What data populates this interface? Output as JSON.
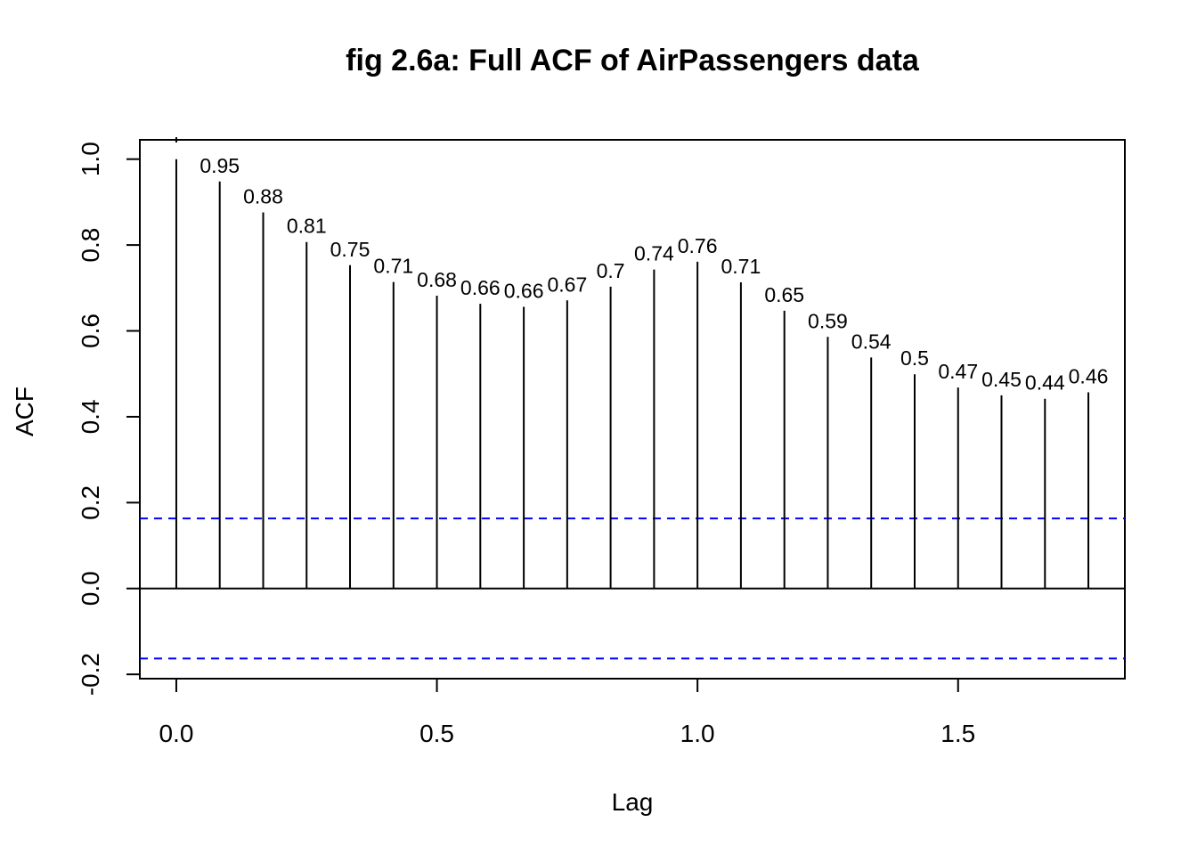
{
  "chart_data": {
    "type": "bar",
    "title": "fig 2.6a: Full ACF of AirPassengers data",
    "xlabel": "Lag",
    "ylabel": "ACF",
    "xlim": [
      -0.07,
      1.82
    ],
    "ylim": [
      -0.21,
      1.045
    ],
    "xticks": [
      "0.0",
      "0.5",
      "1.0",
      "1.5"
    ],
    "xtick_values": [
      0,
      0.5,
      1.0,
      1.5
    ],
    "yticks": [
      "-0.2",
      "0.0",
      "0.2",
      "0.4",
      "0.6",
      "0.8",
      "1.0"
    ],
    "ytick_values": [
      -0.2,
      0,
      0.2,
      0.4,
      0.6,
      0.8,
      1.0
    ],
    "lags": [
      0,
      0.0833,
      0.1667,
      0.25,
      0.3333,
      0.4167,
      0.5,
      0.5833,
      0.6667,
      0.75,
      0.8333,
      0.9167,
      1.0,
      1.0833,
      1.1667,
      1.25,
      1.3333,
      1.4167,
      1.5,
      1.5833,
      1.6667,
      1.75
    ],
    "values": [
      1.0,
      0.948,
      0.876,
      0.807,
      0.753,
      0.714,
      0.682,
      0.663,
      0.656,
      0.671,
      0.703,
      0.743,
      0.761,
      0.713,
      0.647,
      0.586,
      0.538,
      0.499,
      0.468,
      0.45,
      0.442,
      0.457
    ],
    "data_labels": [
      "",
      "0.95",
      "0.88",
      "0.81",
      "0.75",
      "0.71",
      "0.68",
      "0.66",
      "0.66",
      "0.67",
      "0.7",
      "0.74",
      "0.76",
      "0.71",
      "0.65",
      "0.59",
      "0.54",
      "0.5",
      "0.47",
      "0.45",
      "0.44",
      "0.46"
    ],
    "confidence_band": 0.163,
    "confidence_color": "#0000ff",
    "bar_color": "#000000",
    "grid": false,
    "legend": "none"
  }
}
